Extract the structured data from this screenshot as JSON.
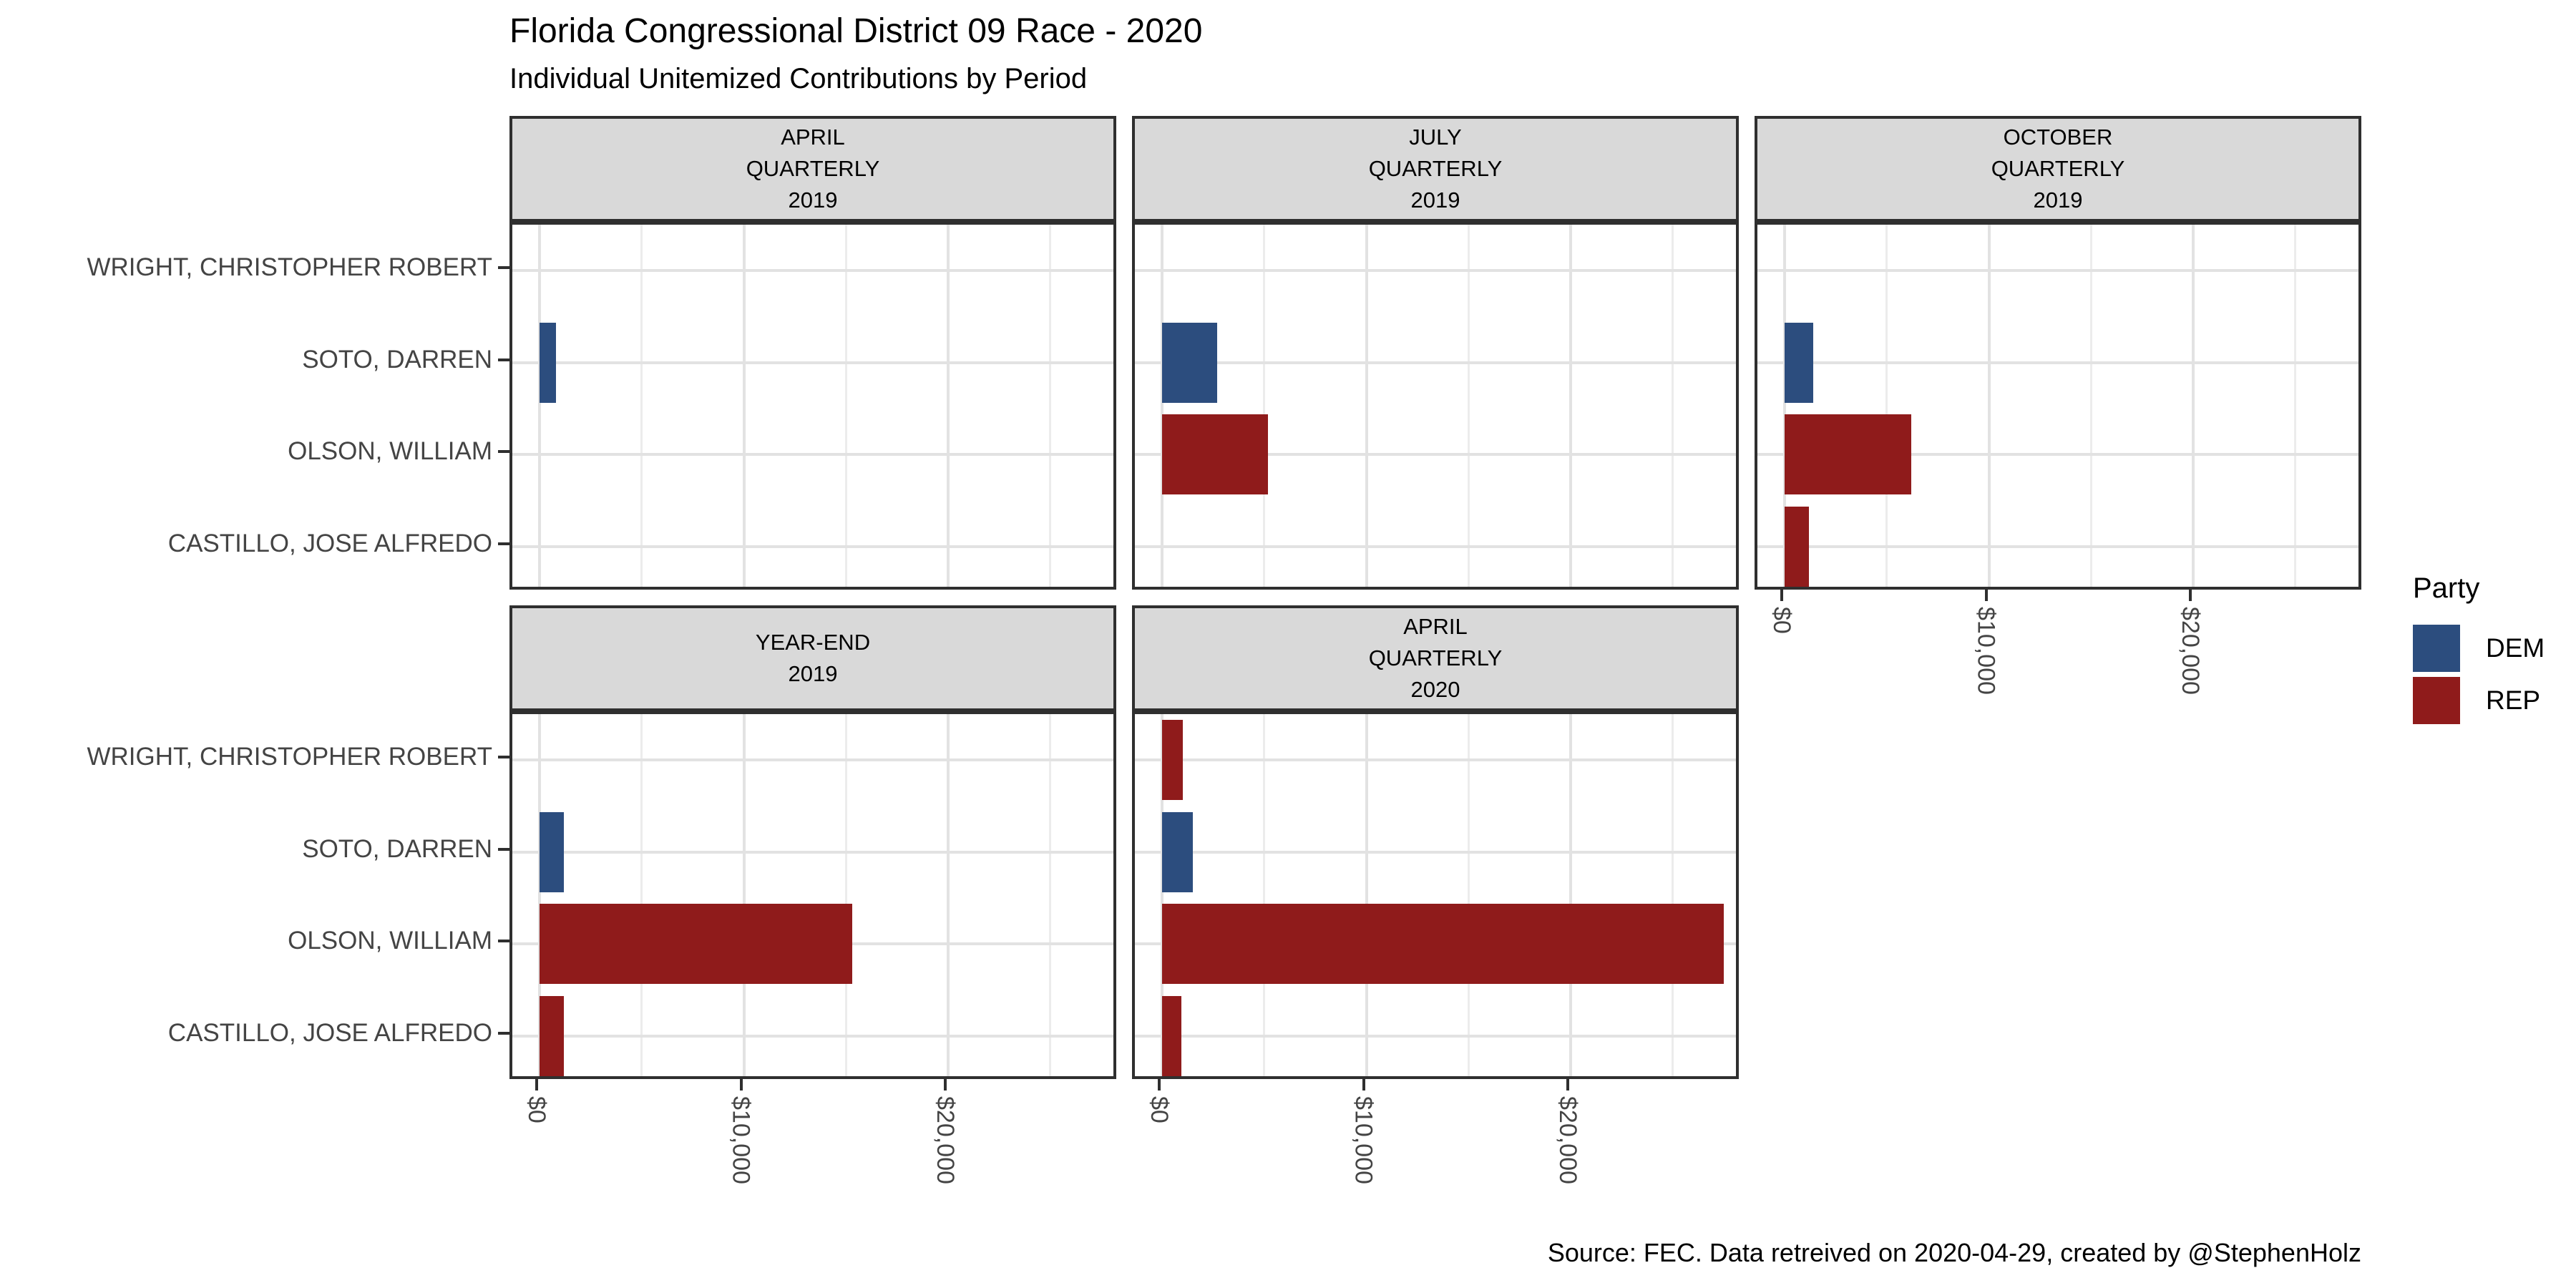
{
  "title": "Florida Congressional District 09 Race - 2020",
  "subtitle": "Individual Unitemized Contributions by Period",
  "caption": "Source: FEC. Data retreived on 2020-04-29, created by @StephenHolz",
  "legend": {
    "title": "Party",
    "items": [
      {
        "label": "DEM",
        "color": "#2C4D7E"
      },
      {
        "label": "REP",
        "color": "#8F1B1B"
      }
    ]
  },
  "chart_data": {
    "type": "bar",
    "orientation": "horizontal",
    "title": "Florida Congressional District 09 Race - 2020",
    "subtitle": "Individual Unitemized Contributions by Period",
    "categories": [
      "WRIGHT, CHRISTOPHER ROBERT",
      "SOTO, DARREN",
      "OLSON, WILLIAM",
      "CASTILLO, JOSE ALFREDO"
    ],
    "party_colors": {
      "DEM": "#2C4D7E",
      "REP": "#8F1B1B"
    },
    "x_axis": {
      "ticks": [
        {
          "value": 0,
          "label": "$0"
        },
        {
          "value": 10000,
          "label": "$10,000"
        },
        {
          "value": 20000,
          "label": "$20,000"
        }
      ],
      "minor_gridlines": [
        5000,
        15000,
        25000
      ],
      "max": 28400,
      "grid": true,
      "tick_label_rotation_deg": 90
    },
    "facets": [
      {
        "title_lines": [
          "APRIL",
          "QUARTERLY",
          "2019"
        ],
        "row": 0,
        "col": 0,
        "show_x_axis": false,
        "bars": [
          {
            "candidate": "SOTO, DARREN",
            "party": "DEM",
            "value": 800
          }
        ]
      },
      {
        "title_lines": [
          "JULY",
          "QUARTERLY",
          "2019"
        ],
        "row": 0,
        "col": 1,
        "show_x_axis": false,
        "bars": [
          {
            "candidate": "SOTO, DARREN",
            "party": "DEM",
            "value": 2700
          },
          {
            "candidate": "OLSON, WILLIAM",
            "party": "REP",
            "value": 5200
          }
        ]
      },
      {
        "title_lines": [
          "OCTOBER",
          "QUARTERLY",
          "2019"
        ],
        "row": 0,
        "col": 2,
        "show_x_axis": true,
        "bars": [
          {
            "candidate": "SOTO, DARREN",
            "party": "DEM",
            "value": 1400
          },
          {
            "candidate": "OLSON, WILLIAM",
            "party": "REP",
            "value": 6200
          },
          {
            "candidate": "CASTILLO, JOSE ALFREDO",
            "party": "REP",
            "value": 1200
          }
        ]
      },
      {
        "title_lines": [
          "YEAR-END",
          "2019"
        ],
        "row": 1,
        "col": 0,
        "show_x_axis": true,
        "bars": [
          {
            "candidate": "SOTO, DARREN",
            "party": "DEM",
            "value": 1200
          },
          {
            "candidate": "OLSON, WILLIAM",
            "party": "REP",
            "value": 15300
          },
          {
            "candidate": "CASTILLO, JOSE ALFREDO",
            "party": "REP",
            "value": 1200
          }
        ]
      },
      {
        "title_lines": [
          "APRIL",
          "QUARTERLY",
          "2020"
        ],
        "row": 1,
        "col": 1,
        "show_x_axis": true,
        "bars": [
          {
            "candidate": "WRIGHT, CHRISTOPHER ROBERT",
            "party": "REP",
            "value": 1000
          },
          {
            "candidate": "SOTO, DARREN",
            "party": "DEM",
            "value": 1500
          },
          {
            "candidate": "OLSON, WILLIAM",
            "party": "REP",
            "value": 27500
          },
          {
            "candidate": "CASTILLO, JOSE ALFREDO",
            "party": "REP",
            "value": 950
          }
        ]
      }
    ],
    "legend": {
      "title": "Party",
      "entries": [
        "DEM",
        "REP"
      ],
      "position": "right"
    }
  }
}
